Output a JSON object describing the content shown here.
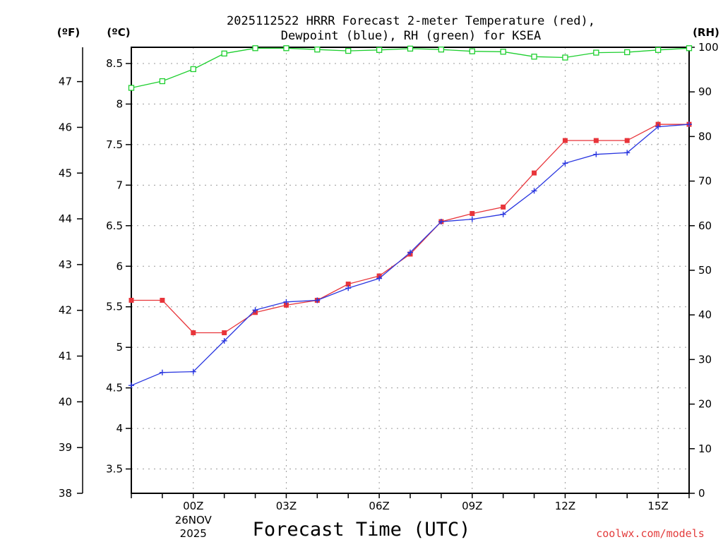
{
  "chart_data": {
    "type": "line",
    "title_line1": "2025112522 HRRR Forecast 2-meter Temperature (red),",
    "title_line2": "Dewpoint (blue), RH (green) for KSEA",
    "xlabel": "Forecast Time (UTC)",
    "credit": "coolwx.com/models",
    "x_hours": [
      -2,
      -1,
      0,
      1,
      2,
      3,
      4,
      5,
      6,
      7,
      8,
      9,
      10,
      11,
      12,
      13,
      14,
      15,
      16
    ],
    "x_range": [
      -2,
      16
    ],
    "x_ticks": [
      {
        "hour": 0,
        "label": "00Z",
        "sub1": "26NOV",
        "sub2": "2025"
      },
      {
        "hour": 3,
        "label": "03Z"
      },
      {
        "hour": 6,
        "label": "06Z"
      },
      {
        "hour": 9,
        "label": "09Z"
      },
      {
        "hour": 12,
        "label": "12Z"
      },
      {
        "hour": 15,
        "label": "15Z"
      }
    ],
    "left_axis_f": {
      "unit": "(ºF)",
      "range": [
        38,
        47.75
      ],
      "ticks": [
        "38",
        "39",
        "40",
        "41",
        "42",
        "43",
        "44",
        "45",
        "46",
        "47"
      ]
    },
    "left_axis_c": {
      "unit": "(ºC)",
      "range": [
        3.2,
        8.7
      ],
      "ticks": [
        "3.5",
        "4",
        "4.5",
        "5",
        "5.5",
        "6",
        "6.5",
        "7",
        "7.5",
        "8",
        "8.5"
      ]
    },
    "right_axis_rh": {
      "unit": "(RH)",
      "range": [
        0,
        100
      ],
      "ticks": [
        "0",
        "10",
        "20",
        "30",
        "40",
        "50",
        "60",
        "70",
        "80",
        "90",
        "100"
      ]
    },
    "series": [
      {
        "name": "Temperature",
        "axis": "c",
        "color": "#e8343a",
        "marker": "filled-square",
        "values": [
          5.58,
          5.58,
          5.18,
          5.18,
          5.43,
          5.52,
          5.58,
          5.78,
          5.88,
          6.15,
          6.55,
          6.65,
          6.73,
          7.15,
          7.55,
          7.55,
          7.55,
          7.75,
          7.75
        ]
      },
      {
        "name": "Dewpoint",
        "axis": "c",
        "color": "#2936e0",
        "marker": "plus",
        "values": [
          4.53,
          4.69,
          4.7,
          5.08,
          5.46,
          5.56,
          5.58,
          5.73,
          5.85,
          6.17,
          6.55,
          6.58,
          6.64,
          6.93,
          7.27,
          7.38,
          7.4,
          7.72,
          7.75
        ]
      },
      {
        "name": "RH",
        "axis": "rh",
        "color": "#1dcf2e",
        "marker": "open-square",
        "values": [
          90.9,
          92.4,
          95.1,
          98.6,
          99.8,
          99.8,
          99.5,
          99.2,
          99.4,
          99.7,
          99.5,
          99.1,
          99.0,
          97.9,
          97.7,
          98.8,
          98.9,
          99.4,
          99.8
        ]
      }
    ]
  }
}
